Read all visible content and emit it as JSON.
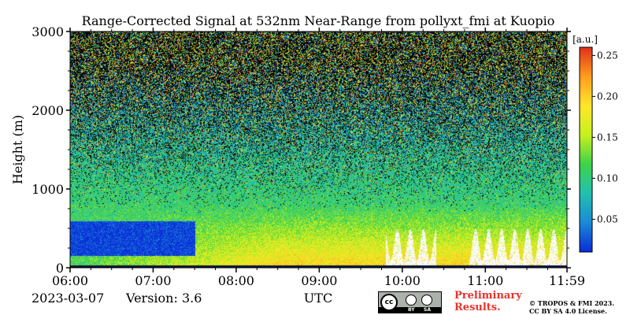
{
  "chart_data": {
    "type": "heatmap",
    "title": "Range-Corrected Signal at 532nm Near-Range from pollyxt_fmi at Kuopio",
    "xlabel": "UTC",
    "ylabel": "Height (m)",
    "x_ticks": [
      "06:00",
      "07:00",
      "08:00",
      "09:00",
      "10:00",
      "11:00",
      "11:59"
    ],
    "x_range_hours": [
      6.0,
      11.9833
    ],
    "y_ticks": [
      0,
      1000,
      2000,
      3000
    ],
    "ylim": [
      0,
      3000
    ],
    "colorbar": {
      "label": "[a.u.]",
      "range": [
        0.01,
        0.26
      ],
      "ticks": [
        "0.05",
        "0.10",
        "0.15",
        "0.20",
        "0.25"
      ],
      "tick_values": [
        0.05,
        0.1,
        0.15,
        0.2,
        0.25
      ],
      "colormap": [
        "#0a2bd9",
        "#1a8ad6",
        "#22c0b0",
        "#3cd34a",
        "#c8f01e",
        "#ffe62a",
        "#ff9d1e",
        "#e0301a"
      ]
    },
    "features": {
      "noise_above_m": 2000,
      "low_cloud_hours": [
        [
          9.8,
          10.4
        ],
        [
          10.8,
          11.98
        ]
      ],
      "low_cloud_top_m": 500,
      "aerosol_layer_top_m": 800
    }
  },
  "footer": {
    "date": "2023-03-07",
    "version": "Version: 3.6",
    "preliminary_line1": "Preliminary",
    "preliminary_line2": "Results.",
    "copyright_line1": "© TROPOS & FMI 2023.",
    "copyright_line2": "CC BY SA 4.0 License.",
    "cc_badge_by": "BY",
    "cc_badge_sa": "SA"
  }
}
